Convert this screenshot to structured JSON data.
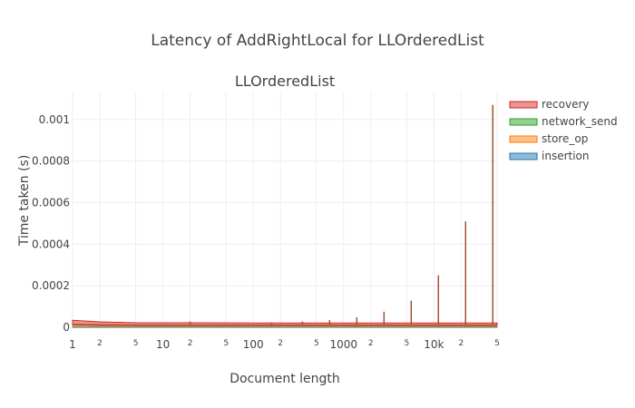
{
  "chart_data": {
    "type": "area",
    "title": "Latency of AddRightLocal for LLOrderedList",
    "subtitle": "LLOrderedList",
    "xlabel": "Document length",
    "ylabel": "Time taken (s)",
    "x_scale": "log",
    "xlim": [
      1,
      50000
    ],
    "ylim": [
      0,
      0.00113
    ],
    "grid": true,
    "legend_position": "right",
    "y_ticks": [
      {
        "value": 0,
        "label": "0"
      },
      {
        "value": 0.0002,
        "label": "0.0002"
      },
      {
        "value": 0.0004,
        "label": "0.0004"
      },
      {
        "value": 0.0006,
        "label": "0.0006"
      },
      {
        "value": 0.0008,
        "label": "0.0008"
      },
      {
        "value": 0.001,
        "label": "0.001"
      }
    ],
    "x_ticks": [
      {
        "value": 1,
        "label": "1",
        "major": true
      },
      {
        "value": 2,
        "label": "2",
        "major": false
      },
      {
        "value": 5,
        "label": "5",
        "major": false
      },
      {
        "value": 10,
        "label": "10",
        "major": true
      },
      {
        "value": 20,
        "label": "2",
        "major": false
      },
      {
        "value": 50,
        "label": "5",
        "major": false
      },
      {
        "value": 100,
        "label": "100",
        "major": true
      },
      {
        "value": 200,
        "label": "2",
        "major": false
      },
      {
        "value": 500,
        "label": "5",
        "major": false
      },
      {
        "value": 1000,
        "label": "1000",
        "major": true
      },
      {
        "value": 2000,
        "label": "2",
        "major": false
      },
      {
        "value": 5000,
        "label": "5",
        "major": false
      },
      {
        "value": 10000,
        "label": "10k",
        "major": true
      },
      {
        "value": 20000,
        "label": "2",
        "major": false
      },
      {
        "value": 50000,
        "label": "5",
        "major": false
      }
    ],
    "x": [
      1,
      2,
      5,
      20,
      100,
      500,
      1400,
      2800,
      5600,
      11200,
      22400,
      44800,
      50000
    ],
    "series": [
      {
        "name": "insertion",
        "color": "#1f77b4",
        "values": [
          4e-06,
          4e-06,
          4e-06,
          4e-06,
          4e-06,
          4e-06,
          4e-06,
          4e-06,
          4e-06,
          4e-06,
          4e-06,
          4e-06,
          4e-06
        ]
      },
      {
        "name": "store_op",
        "color": "#ff7f0e",
        "values": [
          8e-06,
          6e-06,
          5e-06,
          5e-06,
          5e-06,
          5e-06,
          5e-06,
          5e-06,
          5e-06,
          5e-06,
          5e-06,
          5e-06,
          5e-06
        ]
      },
      {
        "name": "network_send",
        "color": "#2ca02c",
        "values": [
          2e-06,
          2e-06,
          2e-06,
          2e-06,
          2e-06,
          2e-06,
          2e-06,
          2e-06,
          2e-06,
          2e-06,
          2e-06,
          2e-06,
          2e-06
        ]
      },
      {
        "name": "recovery",
        "color": "#d62728",
        "values": [
          2e-05,
          1.4e-05,
          1.1e-05,
          1.1e-05,
          1e-05,
          1e-05,
          1e-05,
          1e-05,
          1e-05,
          1e-05,
          1e-05,
          1e-05,
          1e-05
        ]
      }
    ],
    "spikes": [
      {
        "x": 20,
        "y": 2.8e-05
      },
      {
        "x": 160,
        "y": 2.4e-05
      },
      {
        "x": 350,
        "y": 2.8e-05
      },
      {
        "x": 700,
        "y": 3.5e-05
      },
      {
        "x": 1400,
        "y": 4.8e-05
      },
      {
        "x": 2800,
        "y": 7.5e-05
      },
      {
        "x": 5600,
        "y": 0.000128
      },
      {
        "x": 11200,
        "y": 0.00025
      },
      {
        "x": 22400,
        "y": 0.00051
      },
      {
        "x": 44800,
        "y": 0.00107
      }
    ],
    "spike_color": "#a0522d"
  }
}
